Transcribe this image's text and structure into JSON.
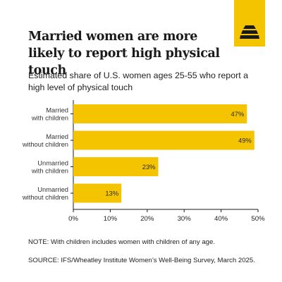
{
  "brand": {
    "accent_color": "#f5c400",
    "logo_icon": "beehive-icon"
  },
  "chart_data": {
    "type": "bar",
    "orientation": "horizontal",
    "title": "Married women are more likely to report high physical touch",
    "subtitle": "Estimated share of U.S. women ages 25-55 who report a high level of physical touch",
    "categories": [
      [
        "Married",
        "with children"
      ],
      [
        "Married",
        "without children"
      ],
      [
        "Unmarried",
        "with children"
      ],
      [
        "Unmarried",
        "without children"
      ]
    ],
    "values": [
      47,
      49,
      23,
      13
    ],
    "value_labels": [
      "47%",
      "49%",
      "23%",
      "13%"
    ],
    "xlim": [
      0,
      50
    ],
    "x_ticks": [
      0,
      10,
      20,
      30,
      40,
      50
    ],
    "x_tick_labels": [
      "0%",
      "10%",
      "20%",
      "30%",
      "40%",
      "50%"
    ],
    "bar_color": "#f5c400",
    "grid": false,
    "legend": false
  },
  "note": "NOTE: With children includes women with children of any age.",
  "source": "SOURCE: IFS/Wheatley Institute Women’s Well-Being Survey, March 2025."
}
